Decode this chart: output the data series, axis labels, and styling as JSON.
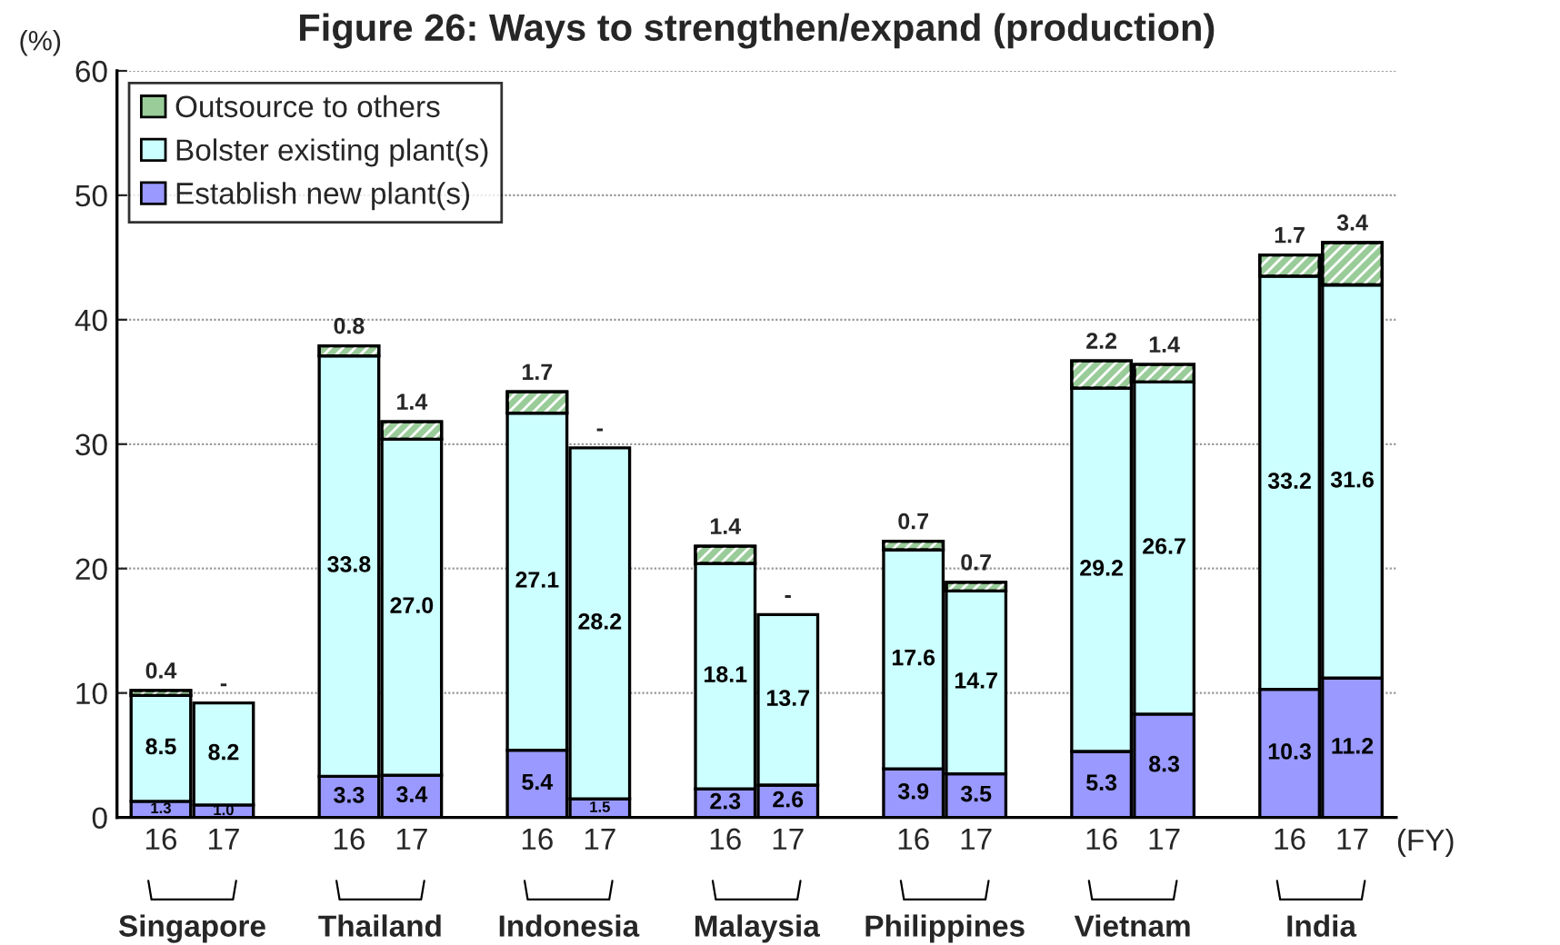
{
  "chart_data": {
    "type": "bar",
    "stacked": true,
    "title": "Figure 26: Ways to strengthen/expand (production)",
    "ylabel": "(%)",
    "xlabel": "(FY)",
    "categories": [
      "16",
      "17",
      null,
      "16",
      "17",
      null,
      "16",
      "17",
      null,
      "16",
      "17",
      null,
      "16",
      "17",
      null,
      "16",
      "17",
      null,
      "16",
      "17"
    ],
    "series": [
      {
        "name": "Establish new plant(s)",
        "color": "#9999ff",
        "values": [
          1.3,
          1.0,
          null,
          3.3,
          3.4,
          null,
          5.4,
          1.5,
          null,
          2.3,
          2.6,
          null,
          3.9,
          3.5,
          null,
          5.3,
          8.3,
          null,
          10.3,
          11.2
        ],
        "value_labels": [
          "1.3",
          "1.0",
          null,
          "3.3",
          "3.4",
          null,
          "5.4",
          "1.5",
          null,
          "2.3",
          "2.6",
          null,
          "3.9",
          "3.5",
          null,
          "5.3",
          "8.3",
          null,
          "10.3",
          "11.2"
        ]
      },
      {
        "name": "Bolster existing plant(s)",
        "color": "#ccffff",
        "values": [
          8.5,
          8.2,
          null,
          33.8,
          27.0,
          null,
          27.1,
          28.2,
          null,
          18.1,
          13.7,
          null,
          17.6,
          14.7,
          null,
          29.2,
          26.7,
          null,
          33.2,
          31.6
        ],
        "value_labels": [
          "8.5",
          "8.2",
          null,
          "33.8",
          "27.0",
          null,
          "27.1",
          "28.2",
          null,
          "18.1",
          "13.7",
          null,
          "17.6",
          "14.7",
          null,
          "29.2",
          "26.7",
          null,
          "33.2",
          "31.6"
        ]
      },
      {
        "name": "Outsource to others",
        "color": "#99cc99",
        "values": [
          0.4,
          0,
          null,
          0.8,
          1.4,
          null,
          1.7,
          0,
          null,
          1.4,
          0,
          null,
          0.7,
          0.7,
          null,
          2.2,
          1.4,
          null,
          1.7,
          3.4
        ],
        "value_labels": [
          "0.4",
          "-",
          null,
          "0.8",
          "1.4",
          null,
          "1.7",
          "-",
          null,
          "1.4",
          "-",
          null,
          "0.7",
          "0.7",
          null,
          "2.2",
          "1.4",
          null,
          "1.7",
          "3.4"
        ]
      }
    ],
    "ylim": [
      0,
      60
    ],
    "yticks": [
      0,
      10,
      20,
      30,
      40,
      50,
      60
    ],
    "grid": "y",
    "legend": "top left",
    "annotations": [
      "Singapore",
      "Thailand",
      "Indonesia",
      "Malaysia",
      "Philippines",
      "Vietnam",
      "India"
    ]
  }
}
